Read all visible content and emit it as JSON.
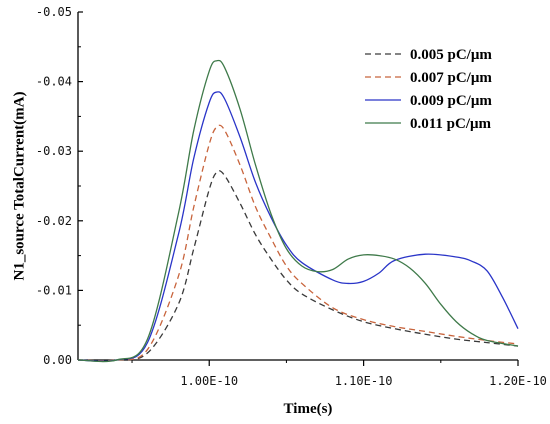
{
  "chart_data": {
    "type": "line",
    "title": "",
    "xlabel": "Time(s)",
    "ylabel": "N1_source TotalCurrent(mA)",
    "xlim": [
      9.15e-11,
      1.2e-10
    ],
    "ylim": [
      0,
      -0.05
    ],
    "x_ticks": [
      1e-10,
      1.1e-10,
      1.2e-10
    ],
    "x_tick_labels": [
      "1.00E-10",
      "1.10E-10",
      "1.20E-10"
    ],
    "y_ticks": [
      0,
      -0.01,
      -0.02,
      -0.03,
      -0.04,
      -0.05
    ],
    "y_tick_labels": [
      "0.00",
      "-0.01",
      "-0.02",
      "-0.03",
      "-0.04",
      "-0.05"
    ],
    "grid": false,
    "legend_position": "top-right",
    "series": [
      {
        "name": "0.005 pC/μm",
        "color": "#3a3a3a",
        "style": "dashed",
        "x": [
          9.15e-11,
          9.4e-11,
          9.6e-11,
          9.8e-11,
          9.9e-11,
          1e-10,
          1.005e-10,
          1.01e-10,
          1.02e-10,
          1.03e-10,
          1.04e-10,
          1.05e-10,
          1.06e-10,
          1.08e-10,
          1.1e-10,
          1.12e-10,
          1.14e-10,
          1.16e-10,
          1.18e-10,
          1.2e-10
        ],
        "y": [
          0,
          0,
          -0.001,
          -0.008,
          -0.016,
          -0.0245,
          -0.027,
          -0.0265,
          -0.0225,
          -0.018,
          -0.0145,
          -0.0115,
          -0.0095,
          -0.0072,
          -0.0055,
          -0.0045,
          -0.0037,
          -0.003,
          -0.0025,
          -0.002
        ]
      },
      {
        "name": "0.007 pC/μm",
        "color": "#c8643c",
        "style": "dashed",
        "x": [
          9.15e-11,
          9.4e-11,
          9.6e-11,
          9.8e-11,
          9.9e-11,
          1e-10,
          1.005e-10,
          1.01e-10,
          1.02e-10,
          1.03e-10,
          1.04e-10,
          1.05e-10,
          1.06e-10,
          1.08e-10,
          1.1e-10,
          1.12e-10,
          1.14e-10,
          1.16e-10,
          1.18e-10,
          1.2e-10
        ],
        "y": [
          0,
          0,
          -0.0015,
          -0.012,
          -0.022,
          -0.031,
          -0.0335,
          -0.033,
          -0.028,
          -0.022,
          -0.0175,
          -0.0135,
          -0.011,
          -0.0075,
          -0.0058,
          -0.0048,
          -0.0041,
          -0.0034,
          -0.0028,
          -0.0023
        ]
      },
      {
        "name": "0.009 pC/μm",
        "color": "#2a35c8",
        "style": "solid",
        "x": [
          9.15e-11,
          9.4e-11,
          9.6e-11,
          9.8e-11,
          9.9e-11,
          1e-10,
          1.005e-10,
          1.01e-10,
          1.02e-10,
          1.03e-10,
          1.04e-10,
          1.05e-10,
          1.06e-10,
          1.08e-10,
          1.09e-10,
          1.1e-10,
          1.11e-10,
          1.12e-10,
          1.14e-10,
          1.16e-10,
          1.17e-10,
          1.18e-10,
          1.19e-10,
          1.2e-10
        ],
        "y": [
          0,
          0,
          -0.0025,
          -0.018,
          -0.029,
          -0.037,
          -0.0385,
          -0.0375,
          -0.032,
          -0.0255,
          -0.0205,
          -0.0165,
          -0.014,
          -0.0115,
          -0.011,
          -0.0113,
          -0.0125,
          -0.0143,
          -0.0152,
          -0.0148,
          -0.0142,
          -0.0128,
          -0.009,
          -0.0045
        ]
      },
      {
        "name": "0.011 pC/μm",
        "color": "#3f7a4a",
        "style": "solid",
        "x": [
          9.15e-11,
          9.4e-11,
          9.6e-11,
          9.8e-11,
          9.9e-11,
          1e-10,
          1.005e-10,
          1.01e-10,
          1.02e-10,
          1.03e-10,
          1.04e-10,
          1.05e-10,
          1.06e-10,
          1.07e-10,
          1.08e-10,
          1.09e-10,
          1.1e-10,
          1.11e-10,
          1.12e-10,
          1.13e-10,
          1.14e-10,
          1.15e-10,
          1.16e-10,
          1.17e-10,
          1.18e-10,
          1.2e-10
        ],
        "y": [
          0,
          0,
          -0.003,
          -0.021,
          -0.033,
          -0.0415,
          -0.043,
          -0.042,
          -0.036,
          -0.028,
          -0.021,
          -0.016,
          -0.0135,
          -0.0127,
          -0.013,
          -0.0145,
          -0.0151,
          -0.015,
          -0.0145,
          -0.0132,
          -0.011,
          -0.008,
          -0.0055,
          -0.0038,
          -0.0028,
          -0.002
        ]
      }
    ]
  }
}
